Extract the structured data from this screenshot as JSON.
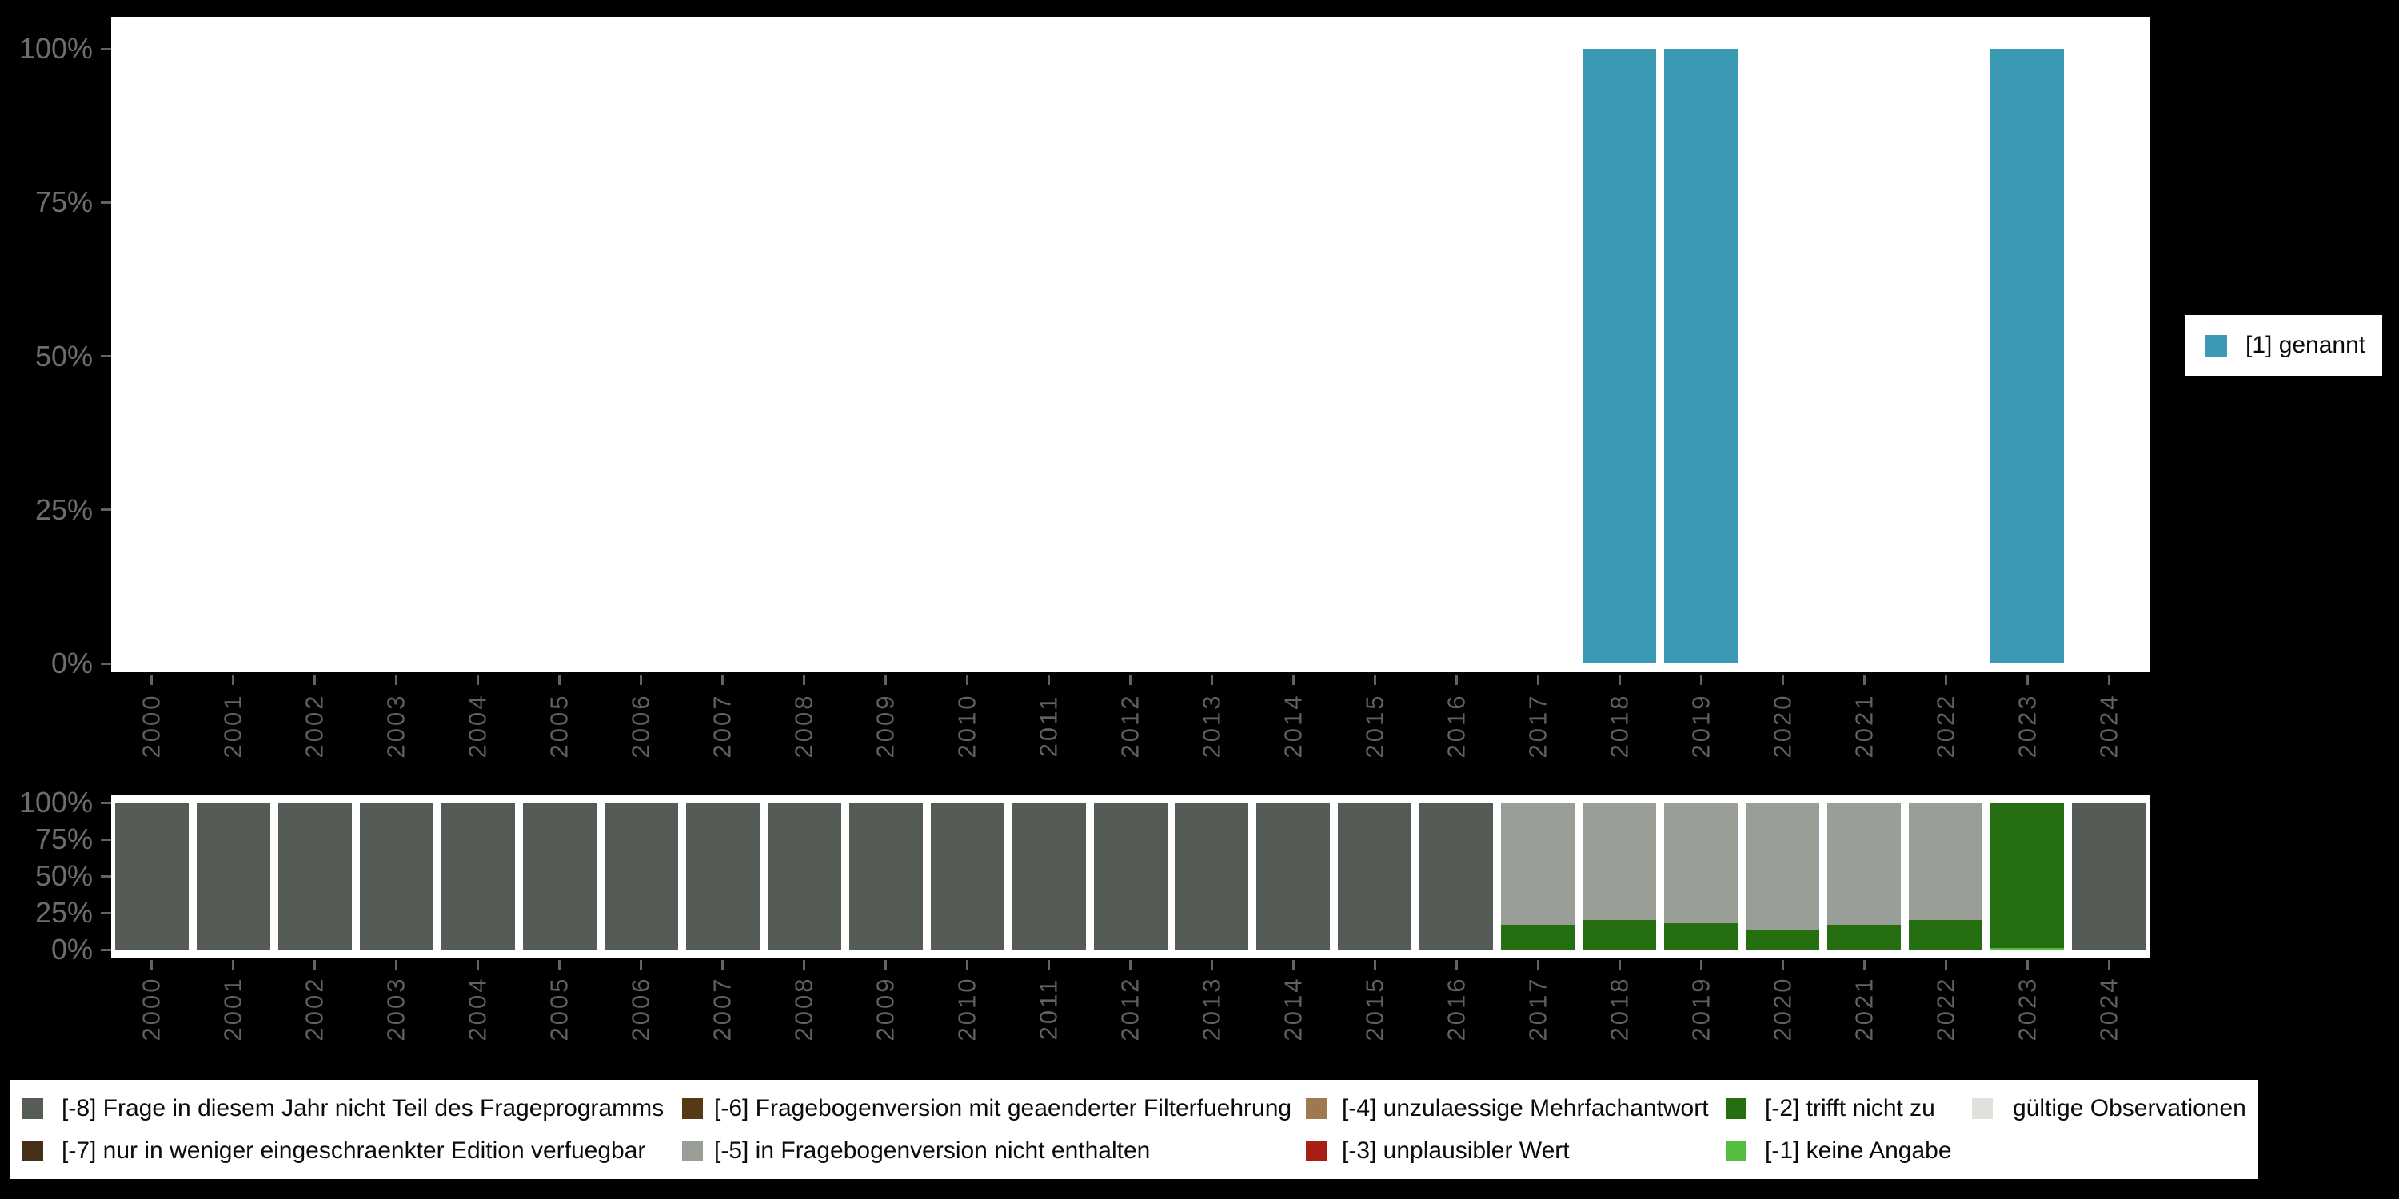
{
  "chart_data": [
    {
      "type": "bar",
      "title": "",
      "categories": [
        "2000",
        "2001",
        "2002",
        "2003",
        "2004",
        "2005",
        "2006",
        "2007",
        "2008",
        "2009",
        "2010",
        "2011",
        "2012",
        "2013",
        "2014",
        "2015",
        "2016",
        "2017",
        "2018",
        "2019",
        "2020",
        "2021",
        "2022",
        "2023",
        "2024"
      ],
      "yticks": [
        "0%",
        "25%",
        "50%",
        "75%",
        "100%"
      ],
      "ylim": [
        0,
        100
      ],
      "grid": false,
      "series": [
        {
          "name": "[1] genannt",
          "color": "#3c99b3",
          "values": [
            0,
            0,
            0,
            0,
            0,
            0,
            0,
            0,
            0,
            0,
            0,
            0,
            0,
            0,
            0,
            0,
            0,
            0,
            100,
            100,
            0,
            0,
            0,
            100,
            0
          ]
        }
      ],
      "legend": {
        "position": "right",
        "label": "[1] genannt",
        "color": "#3c99b3"
      }
    },
    {
      "type": "bar",
      "subtype": "stacked",
      "title": "",
      "categories": [
        "2000",
        "2001",
        "2002",
        "2003",
        "2004",
        "2005",
        "2006",
        "2007",
        "2008",
        "2009",
        "2010",
        "2011",
        "2012",
        "2013",
        "2014",
        "2015",
        "2016",
        "2017",
        "2018",
        "2019",
        "2020",
        "2021",
        "2022",
        "2023",
        "2024"
      ],
      "yticks": [
        "0%",
        "25%",
        "50%",
        "75%",
        "100%"
      ],
      "ylim": [
        0,
        100
      ],
      "grid": false,
      "series": [
        {
          "name": "[-1] keine Angabe",
          "color": "#52bd3f",
          "values": [
            0,
            0,
            0,
            0,
            0,
            0,
            0,
            0,
            0,
            0,
            0,
            0,
            0,
            0,
            0,
            0,
            0,
            0,
            0,
            0,
            0,
            0,
            0,
            1,
            0
          ]
        },
        {
          "name": "[-2] trifft nicht zu",
          "color": "#256f11",
          "values": [
            0,
            0,
            0,
            0,
            0,
            0,
            0,
            0,
            0,
            0,
            0,
            0,
            0,
            0,
            0,
            0,
            0,
            17,
            20,
            18,
            13,
            17,
            20,
            99,
            0
          ]
        },
        {
          "name": "[-5] in Fragebogenversion nicht enthalten",
          "color": "#999e97",
          "values": [
            0,
            0,
            0,
            0,
            0,
            0,
            0,
            0,
            0,
            0,
            0,
            0,
            0,
            0,
            0,
            0,
            0,
            83,
            80,
            82,
            87,
            83,
            80,
            0,
            0
          ]
        },
        {
          "name": "[-8] Frage in diesem Jahr nicht Teil des Frageprogramms",
          "color": "#555c55",
          "values": [
            100,
            100,
            100,
            100,
            100,
            100,
            100,
            100,
            100,
            100,
            100,
            100,
            100,
            100,
            100,
            100,
            100,
            0,
            0,
            0,
            0,
            0,
            0,
            0,
            100
          ]
        }
      ]
    }
  ],
  "legend_top": {
    "label": "[1] genannt",
    "color": "#3c99b3"
  },
  "legend_bottom": {
    "items": [
      {
        "label": "[-8] Frage in diesem Jahr nicht Teil des Frageprogramms",
        "color": "#565d56",
        "col": 0,
        "row": 0
      },
      {
        "label": "[-7] nur in weniger eingeschraenkter Edition verfuegbar",
        "color": "#46301a",
        "col": 0,
        "row": 1
      },
      {
        "label": "[-6] Fragebogenversion mit geaenderter Filterfuehrung",
        "color": "#573916",
        "col": 1,
        "row": 0
      },
      {
        "label": "[-5] in Fragebogenversion nicht enthalten",
        "color": "#999e97",
        "col": 1,
        "row": 1
      },
      {
        "label": "[-4] unzulaessige Mehrfachantwort",
        "color": "#9e7850",
        "col": 2,
        "row": 0
      },
      {
        "label": "[-3] unplausibler Wert",
        "color": "#a81f16",
        "col": 2,
        "row": 1
      },
      {
        "label": "[-2] trifft nicht zu",
        "color": "#256f11",
        "col": 3,
        "row": 0
      },
      {
        "label": "[-1] keine Angabe",
        "color": "#52bd3f",
        "col": 3,
        "row": 1
      },
      {
        "label": "gültige Observationen",
        "color": "#dfe2dc",
        "col": 4,
        "row": 0
      }
    ]
  },
  "colors": {
    "background": "#000000",
    "panel": "#ffffff",
    "axis_text": "#666666",
    "genannt_teal": "#3c99b3"
  }
}
